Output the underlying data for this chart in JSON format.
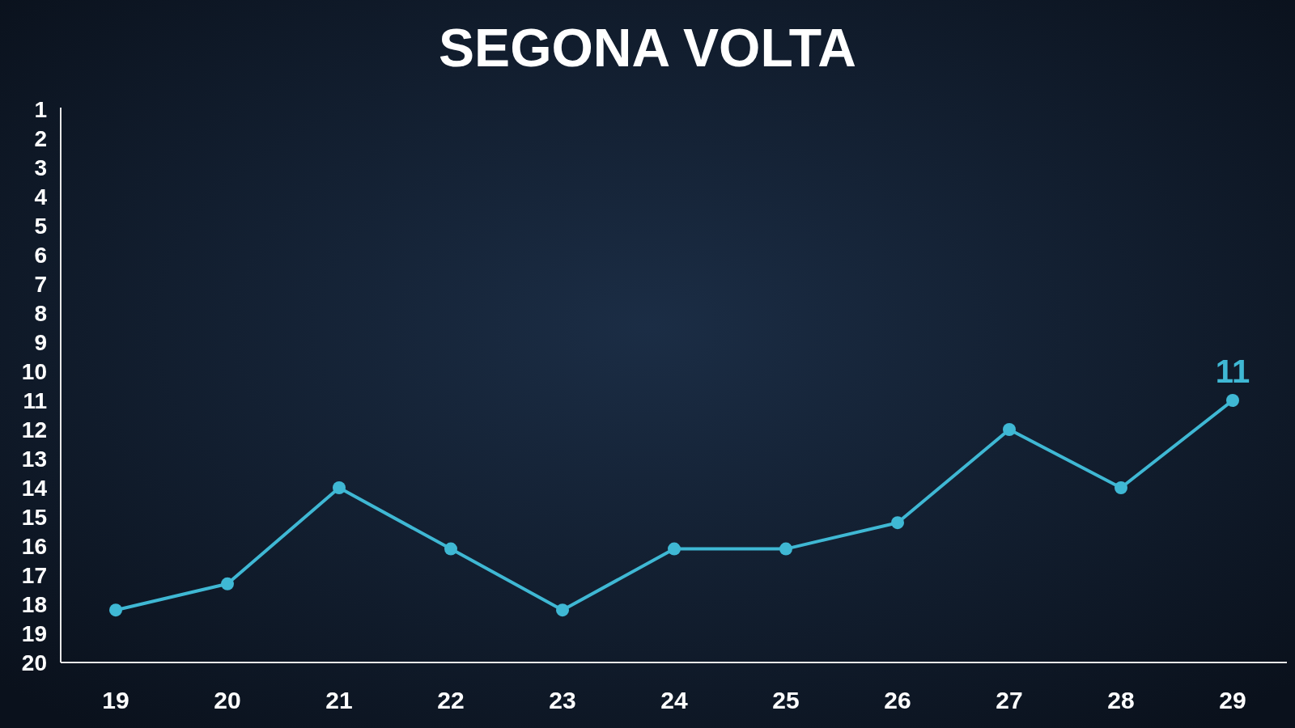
{
  "chart_data": {
    "type": "line",
    "title": "SEGONA VOLTA",
    "categories": [
      "19",
      "20",
      "21",
      "22",
      "23",
      "24",
      "25",
      "26",
      "27",
      "28",
      "29"
    ],
    "series": [
      {
        "color": "#3fb8d4",
        "values": [
          18.2,
          17.3,
          14,
          16.1,
          18.2,
          16.1,
          16.1,
          15.2,
          12,
          14,
          11
        ],
        "value_labels": [
          null,
          null,
          null,
          null,
          null,
          null,
          null,
          null,
          null,
          null,
          "11"
        ]
      }
    ],
    "ylim": [
      20,
      1
    ],
    "yticks": [
      1,
      2,
      3,
      4,
      5,
      6,
      7,
      8,
      9,
      10,
      11,
      12,
      13,
      14,
      15,
      16,
      17,
      18,
      19,
      20
    ],
    "grid": false,
    "marker": "circle",
    "line_style": "solid"
  }
}
